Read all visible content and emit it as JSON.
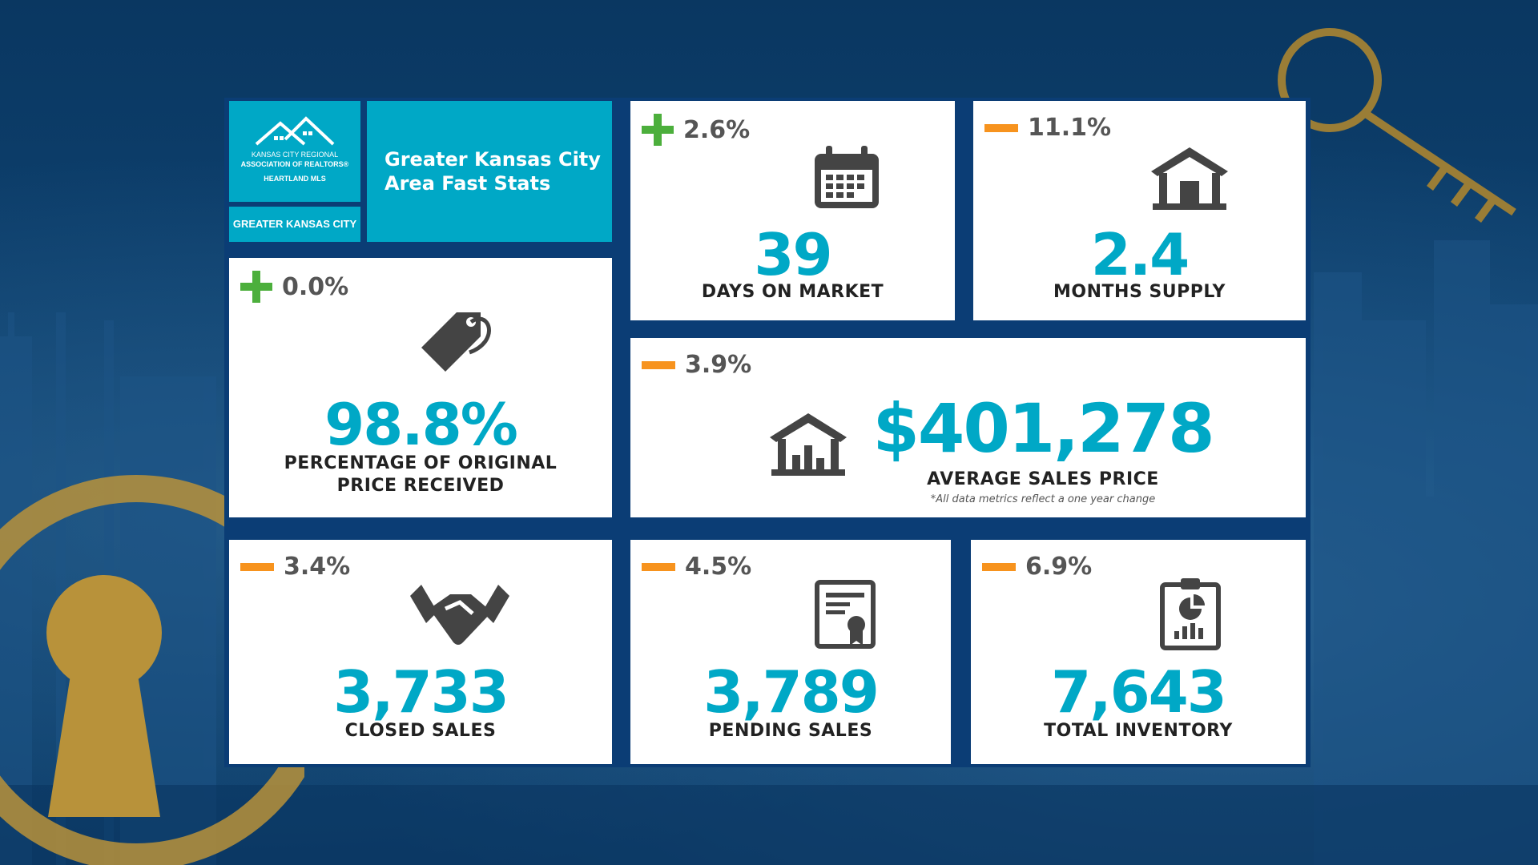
{
  "logo": {
    "line1": "KANSAS CITY REGIONAL",
    "line2": "ASSOCIATION OF REALTORS®",
    "line3": "HEARTLAND MLS",
    "region": "GREATER KANSAS CITY"
  },
  "title": "Greater Kansas City Area Fast Stats",
  "colors": {
    "teal": "#00a8c6",
    "navy": "#0b3d75",
    "up": "#4caf3c",
    "down": "#f7931e",
    "gold": "#b8923a"
  },
  "stats": {
    "days_on_market": {
      "change": "2.6%",
      "direction": "up",
      "value": "39",
      "label": "DAYS ON MARKET",
      "icon": "calendar-icon"
    },
    "months_supply": {
      "change": "11.1%",
      "direction": "down",
      "value": "2.4",
      "label": "MONTHS SUPPLY",
      "icon": "house-icon"
    },
    "pct_original": {
      "change": "0.0%",
      "direction": "up",
      "value": "98.8%",
      "label_line1": "PERCENTAGE OF ORIGINAL",
      "label_line2": "PRICE RECEIVED",
      "icon": "price-tag-icon"
    },
    "avg_sales_price": {
      "change": "3.9%",
      "direction": "down",
      "value": "$401,278",
      "label": "AVERAGE SALES PRICE",
      "note": "*All data metrics reflect a one year change",
      "icon": "house-chart-icon"
    },
    "closed_sales": {
      "change": "3.4%",
      "direction": "down",
      "value": "3,733",
      "label": "CLOSED SALES",
      "icon": "handshake-icon"
    },
    "pending_sales": {
      "change": "4.5%",
      "direction": "down",
      "value": "3,789",
      "label": "PENDING SALES",
      "icon": "certificate-icon"
    },
    "total_inventory": {
      "change": "6.9%",
      "direction": "down",
      "value": "7,643",
      "label": "TOTAL INVENTORY",
      "icon": "clipboard-chart-icon"
    }
  }
}
